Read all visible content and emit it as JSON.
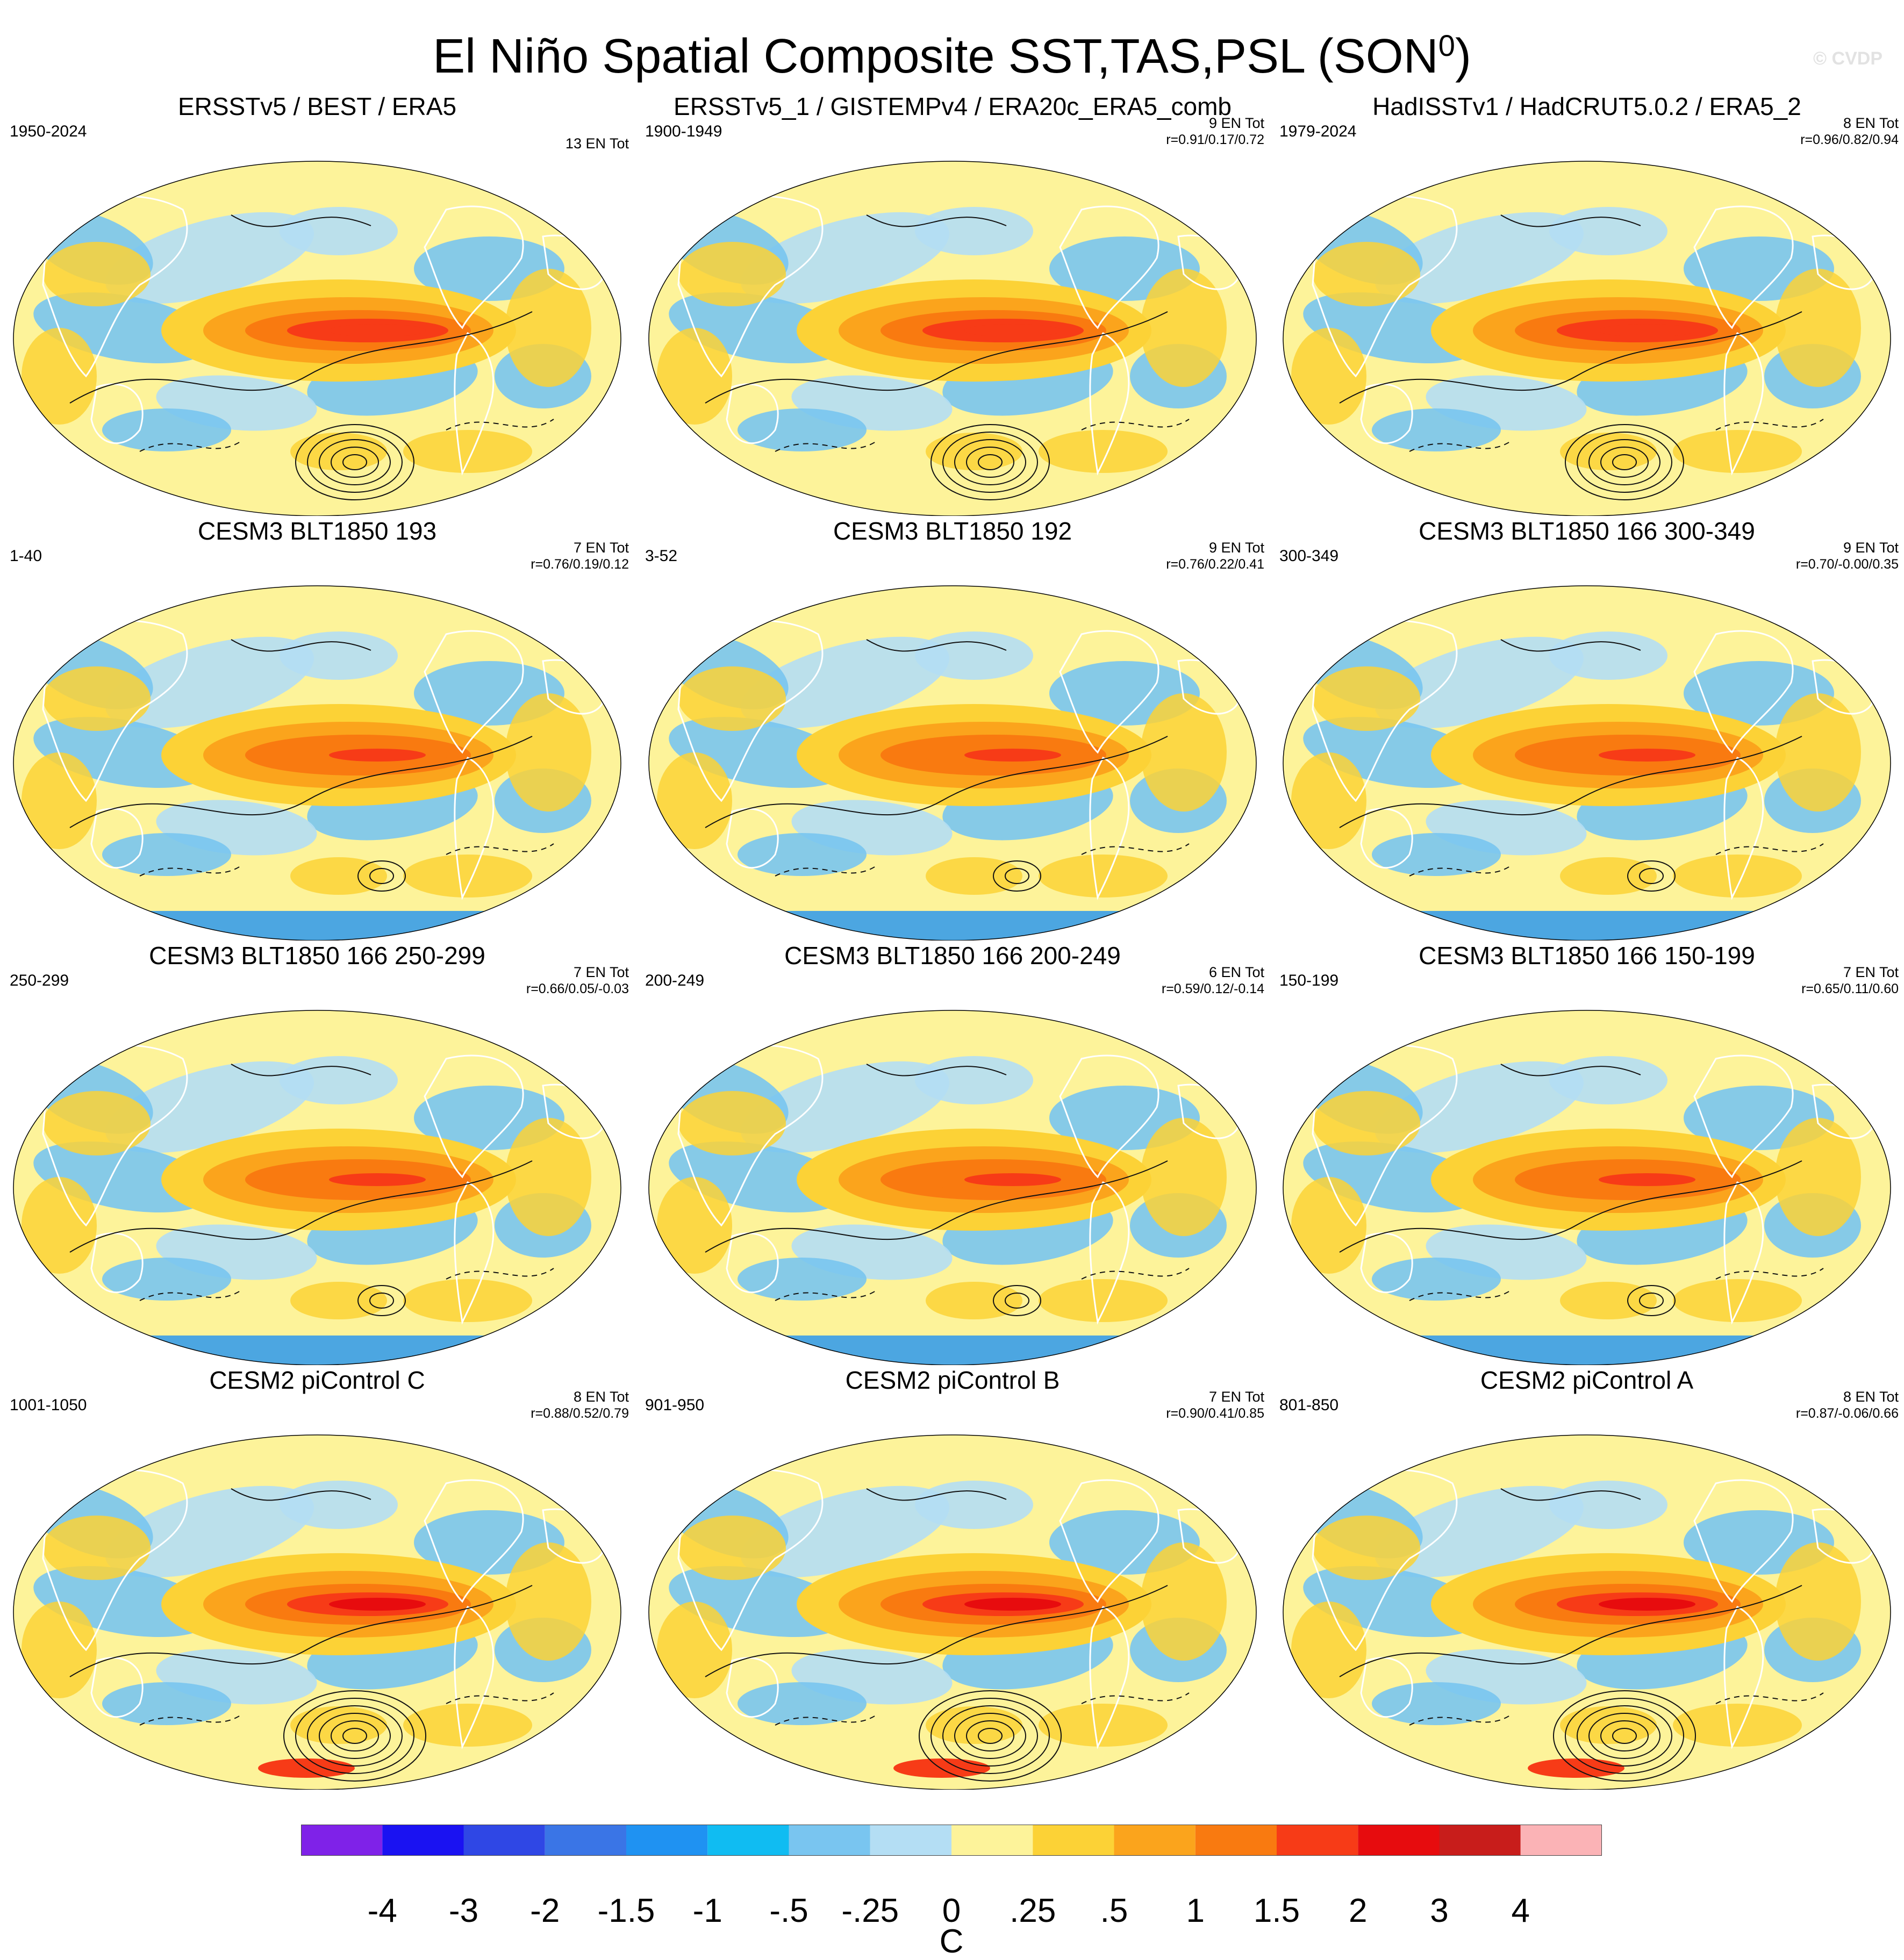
{
  "title": {
    "main": "El Niño Spatial Composite SST,TAS,PSL (SON",
    "superscript": "0",
    "close": ")"
  },
  "watermark": "© CVDP",
  "chart_data": {
    "type": "heatmap",
    "description_units": "C",
    "panels": [
      {
        "title": "ERSSTv5 / BEST / ERA5",
        "years": "1950-2024",
        "count": "13 EN Tot",
        "corr": "",
        "style": "obs"
      },
      {
        "title": "ERSSTv5_1 / GISTEMPv4 / ERA20c_ERA5_comb",
        "years": "1900-1949",
        "count": "9 EN Tot",
        "corr": "r=0.91/0.17/0.72",
        "style": "obs"
      },
      {
        "title": "HadISSTv1 / HadCRUT5.0.2 / ERA5_2",
        "years": "1979-2024",
        "count": "8 EN Tot",
        "corr": "r=0.96/0.82/0.94",
        "style": "obs"
      },
      {
        "title": "CESM3 BLT1850 193",
        "years": "1-40",
        "count": "7 EN Tot",
        "corr": "r=0.76/0.19/0.12",
        "style": "model"
      },
      {
        "title": "CESM3 BLT1850 192",
        "years": "3-52",
        "count": "9 EN Tot",
        "corr": "r=0.76/0.22/0.41",
        "style": "model"
      },
      {
        "title": "CESM3 BLT1850 166 300-349",
        "years": "300-349",
        "count": "9 EN Tot",
        "corr": "r=0.70/-0.00/0.35",
        "style": "model"
      },
      {
        "title": "CESM3 BLT1850 166 250-299",
        "years": "250-299",
        "count": "7 EN Tot",
        "corr": "r=0.66/0.05/-0.03",
        "style": "model"
      },
      {
        "title": "CESM3 BLT1850 166 200-249",
        "years": "200-249",
        "count": "6 EN Tot",
        "corr": "r=0.59/0.12/-0.14",
        "style": "model"
      },
      {
        "title": "CESM3 BLT1850 166 150-199",
        "years": "150-199",
        "count": "7 EN Tot",
        "corr": "r=0.65/0.11/0.60",
        "style": "model"
      },
      {
        "title": "CESM2 piControl C",
        "years": "1001-1050",
        "count": "8 EN Tot",
        "corr": "r=0.88/0.52/0.79",
        "style": "strong"
      },
      {
        "title": "CESM2 piControl B",
        "years": "901-950",
        "count": "7 EN Tot",
        "corr": "r=0.90/0.41/0.85",
        "style": "strong"
      },
      {
        "title": "CESM2 piControl A",
        "years": "801-850",
        "count": "8 EN Tot",
        "corr": "r=0.87/-0.06/0.66",
        "style": "strong"
      }
    ],
    "colorbar": {
      "colors": [
        "#7f22e8",
        "#1a12f2",
        "#2f47e5",
        "#3a75e6",
        "#1f92f2",
        "#10bcf2",
        "#79c5f0",
        "#b4def4",
        "#fdf39a",
        "#fcd236",
        "#fba41c",
        "#f97a10",
        "#f73b17",
        "#e70c0e",
        "#c81d1b",
        "#fbb3b6"
      ],
      "labels": [
        "-4",
        "-3",
        "-2",
        "-1.5",
        "-1",
        "-.5",
        "-.25",
        "0",
        ".25",
        ".5",
        "1",
        "1.5",
        "2",
        "3",
        "4"
      ],
      "units": "C"
    }
  }
}
